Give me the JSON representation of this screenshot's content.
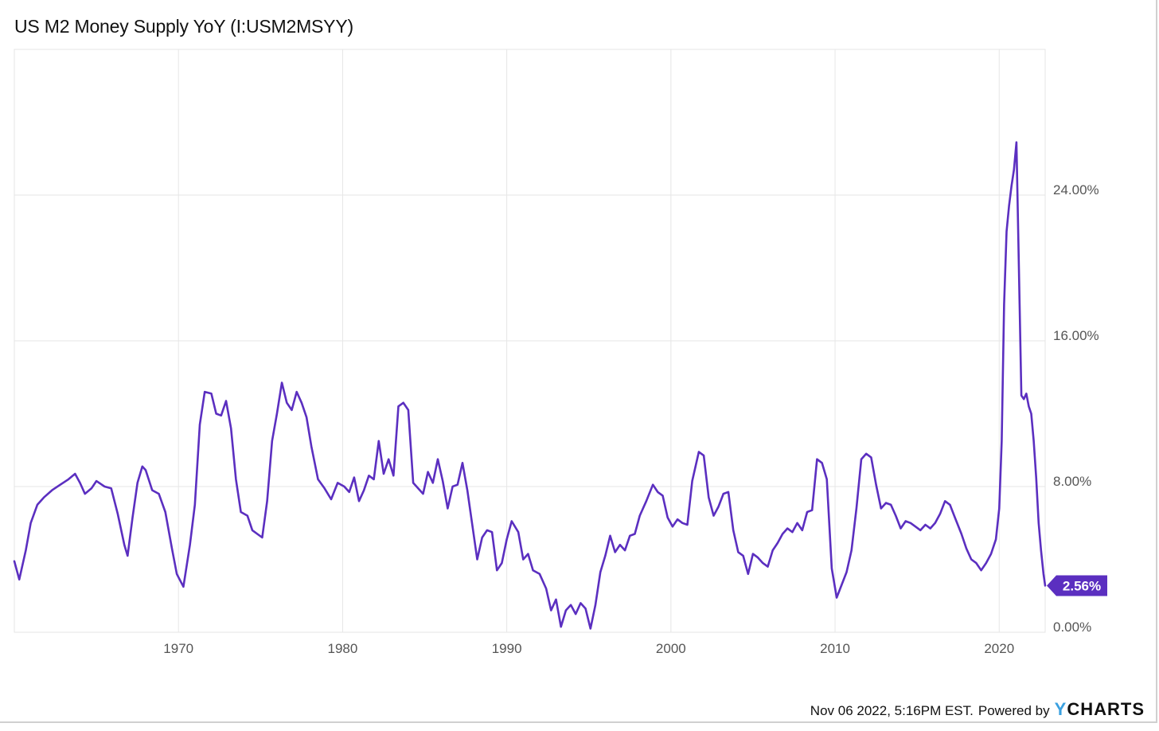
{
  "title": "US M2 Money Supply YoY (I:USM2MSYY)",
  "footer": {
    "timestamp": "Nov 06 2022, 5:16PM EST.",
    "powered_by": "Powered by",
    "brand_first": "Y",
    "brand_rest": "CHARTS"
  },
  "colors": {
    "line": "#5b2fc0",
    "badge": "#5b2fc0",
    "grid": "#e6e6e6"
  },
  "chart_data": {
    "type": "line",
    "title": "US M2 Money Supply YoY (I:USM2MSYY)",
    "xlabel": "",
    "ylabel": "",
    "xlim": [
      1960.0,
      2022.8
    ],
    "ylim": [
      0,
      32
    ],
    "x_ticks": [
      1970,
      1980,
      1990,
      2000,
      2010,
      2020
    ],
    "y_ticks": [
      0,
      8,
      16,
      24
    ],
    "y_tick_labels": [
      "0.00%",
      "8.00%",
      "16.00%",
      "24.00%"
    ],
    "last_value_label": "2.56%",
    "series": [
      {
        "name": "US M2 Money Supply YoY",
        "points": [
          [
            1960.0,
            3.9
          ],
          [
            1960.3,
            2.9
          ],
          [
            1960.7,
            4.5
          ],
          [
            1961.0,
            6.0
          ],
          [
            1961.4,
            7.0
          ],
          [
            1961.8,
            7.4
          ],
          [
            1962.3,
            7.8
          ],
          [
            1962.8,
            8.1
          ],
          [
            1963.3,
            8.4
          ],
          [
            1963.7,
            8.7
          ],
          [
            1964.0,
            8.2
          ],
          [
            1964.3,
            7.6
          ],
          [
            1964.7,
            7.9
          ],
          [
            1965.0,
            8.3
          ],
          [
            1965.5,
            8.0
          ],
          [
            1965.9,
            7.9
          ],
          [
            1966.3,
            6.5
          ],
          [
            1966.7,
            4.8
          ],
          [
            1966.9,
            4.2
          ],
          [
            1967.2,
            6.3
          ],
          [
            1967.5,
            8.2
          ],
          [
            1967.8,
            9.1
          ],
          [
            1968.0,
            8.9
          ],
          [
            1968.4,
            7.8
          ],
          [
            1968.8,
            7.6
          ],
          [
            1969.2,
            6.6
          ],
          [
            1969.6,
            4.6
          ],
          [
            1969.9,
            3.2
          ],
          [
            1970.3,
            2.5
          ],
          [
            1970.7,
            4.8
          ],
          [
            1971.0,
            7.0
          ],
          [
            1971.3,
            11.4
          ],
          [
            1971.6,
            13.2
          ],
          [
            1972.0,
            13.1
          ],
          [
            1972.3,
            12.0
          ],
          [
            1972.6,
            11.9
          ],
          [
            1972.9,
            12.7
          ],
          [
            1973.2,
            11.2
          ],
          [
            1973.5,
            8.4
          ],
          [
            1973.8,
            6.6
          ],
          [
            1974.2,
            6.4
          ],
          [
            1974.5,
            5.6
          ],
          [
            1974.8,
            5.4
          ],
          [
            1975.1,
            5.2
          ],
          [
            1975.4,
            7.2
          ],
          [
            1975.7,
            10.5
          ],
          [
            1976.0,
            12.0
          ],
          [
            1976.3,
            13.7
          ],
          [
            1976.6,
            12.6
          ],
          [
            1976.9,
            12.2
          ],
          [
            1977.2,
            13.2
          ],
          [
            1977.5,
            12.6
          ],
          [
            1977.8,
            11.8
          ],
          [
            1978.1,
            10.2
          ],
          [
            1978.5,
            8.4
          ],
          [
            1978.9,
            7.9
          ],
          [
            1979.3,
            7.3
          ],
          [
            1979.7,
            8.2
          ],
          [
            1980.1,
            8.0
          ],
          [
            1980.4,
            7.7
          ],
          [
            1980.7,
            8.5
          ],
          [
            1981.0,
            7.2
          ],
          [
            1981.3,
            7.8
          ],
          [
            1981.6,
            8.6
          ],
          [
            1981.9,
            8.4
          ],
          [
            1982.2,
            10.5
          ],
          [
            1982.5,
            8.7
          ],
          [
            1982.8,
            9.5
          ],
          [
            1983.1,
            8.6
          ],
          [
            1983.4,
            12.4
          ],
          [
            1983.7,
            12.6
          ],
          [
            1984.0,
            12.2
          ],
          [
            1984.3,
            8.2
          ],
          [
            1984.6,
            7.9
          ],
          [
            1984.9,
            7.6
          ],
          [
            1985.2,
            8.8
          ],
          [
            1985.5,
            8.2
          ],
          [
            1985.8,
            9.5
          ],
          [
            1986.1,
            8.3
          ],
          [
            1986.4,
            6.8
          ],
          [
            1986.7,
            8.0
          ],
          [
            1987.0,
            8.1
          ],
          [
            1987.3,
            9.3
          ],
          [
            1987.6,
            7.8
          ],
          [
            1987.9,
            5.9
          ],
          [
            1988.2,
            4.0
          ],
          [
            1988.5,
            5.2
          ],
          [
            1988.8,
            5.6
          ],
          [
            1989.1,
            5.5
          ],
          [
            1989.4,
            3.4
          ],
          [
            1989.7,
            3.8
          ],
          [
            1990.0,
            5.1
          ],
          [
            1990.3,
            6.1
          ],
          [
            1990.7,
            5.5
          ],
          [
            1991.0,
            4.0
          ],
          [
            1991.3,
            4.3
          ],
          [
            1991.6,
            3.4
          ],
          [
            1992.0,
            3.2
          ],
          [
            1992.4,
            2.4
          ],
          [
            1992.7,
            1.2
          ],
          [
            1993.0,
            1.8
          ],
          [
            1993.3,
            0.3
          ],
          [
            1993.6,
            1.2
          ],
          [
            1993.9,
            1.5
          ],
          [
            1994.2,
            1.0
          ],
          [
            1994.5,
            1.6
          ],
          [
            1994.8,
            1.3
          ],
          [
            1995.1,
            0.2
          ],
          [
            1995.4,
            1.5
          ],
          [
            1995.7,
            3.3
          ],
          [
            1996.0,
            4.2
          ],
          [
            1996.3,
            5.3
          ],
          [
            1996.6,
            4.4
          ],
          [
            1996.9,
            4.8
          ],
          [
            1997.2,
            4.5
          ],
          [
            1997.5,
            5.3
          ],
          [
            1997.8,
            5.4
          ],
          [
            1998.1,
            6.4
          ],
          [
            1998.5,
            7.2
          ],
          [
            1998.9,
            8.1
          ],
          [
            1999.2,
            7.7
          ],
          [
            1999.5,
            7.5
          ],
          [
            1999.8,
            6.3
          ],
          [
            2000.1,
            5.8
          ],
          [
            2000.4,
            6.2
          ],
          [
            2000.7,
            6.0
          ],
          [
            2001.0,
            5.9
          ],
          [
            2001.3,
            8.3
          ],
          [
            2001.7,
            9.9
          ],
          [
            2002.0,
            9.7
          ],
          [
            2002.3,
            7.4
          ],
          [
            2002.6,
            6.4
          ],
          [
            2002.9,
            6.9
          ],
          [
            2003.2,
            7.6
          ],
          [
            2003.5,
            7.7
          ],
          [
            2003.8,
            5.6
          ],
          [
            2004.1,
            4.4
          ],
          [
            2004.4,
            4.2
          ],
          [
            2004.7,
            3.2
          ],
          [
            2005.0,
            4.3
          ],
          [
            2005.3,
            4.1
          ],
          [
            2005.6,
            3.8
          ],
          [
            2005.9,
            3.6
          ],
          [
            2006.2,
            4.5
          ],
          [
            2006.5,
            4.9
          ],
          [
            2006.8,
            5.4
          ],
          [
            2007.1,
            5.7
          ],
          [
            2007.4,
            5.5
          ],
          [
            2007.7,
            6.0
          ],
          [
            2008.0,
            5.6
          ],
          [
            2008.3,
            6.6
          ],
          [
            2008.6,
            6.7
          ],
          [
            2008.9,
            9.5
          ],
          [
            2009.2,
            9.3
          ],
          [
            2009.5,
            8.4
          ],
          [
            2009.8,
            3.5
          ],
          [
            2010.1,
            1.9
          ],
          [
            2010.4,
            2.6
          ],
          [
            2010.7,
            3.3
          ],
          [
            2011.0,
            4.5
          ],
          [
            2011.3,
            6.8
          ],
          [
            2011.6,
            9.5
          ],
          [
            2011.9,
            9.8
          ],
          [
            2012.2,
            9.6
          ],
          [
            2012.5,
            8.1
          ],
          [
            2012.8,
            6.8
          ],
          [
            2013.1,
            7.1
          ],
          [
            2013.4,
            7.0
          ],
          [
            2013.7,
            6.4
          ],
          [
            2014.0,
            5.7
          ],
          [
            2014.3,
            6.1
          ],
          [
            2014.6,
            6.0
          ],
          [
            2014.9,
            5.8
          ],
          [
            2015.2,
            5.6
          ],
          [
            2015.5,
            5.9
          ],
          [
            2015.8,
            5.7
          ],
          [
            2016.1,
            6.0
          ],
          [
            2016.4,
            6.5
          ],
          [
            2016.7,
            7.2
          ],
          [
            2017.0,
            7.0
          ],
          [
            2017.3,
            6.3
          ],
          [
            2017.7,
            5.4
          ],
          [
            2018.0,
            4.6
          ],
          [
            2018.3,
            4.0
          ],
          [
            2018.6,
            3.8
          ],
          [
            2018.9,
            3.4
          ],
          [
            2019.2,
            3.8
          ],
          [
            2019.5,
            4.3
          ],
          [
            2019.8,
            5.1
          ],
          [
            2020.0,
            6.8
          ],
          [
            2020.15,
            10.5
          ],
          [
            2020.3,
            18.0
          ],
          [
            2020.45,
            22.0
          ],
          [
            2020.6,
            23.4
          ],
          [
            2020.75,
            24.5
          ],
          [
            2020.9,
            25.4
          ],
          [
            2021.05,
            26.9
          ],
          [
            2021.2,
            20.0
          ],
          [
            2021.35,
            13.0
          ],
          [
            2021.5,
            12.8
          ],
          [
            2021.65,
            13.1
          ],
          [
            2021.8,
            12.4
          ],
          [
            2021.95,
            12.0
          ],
          [
            2022.1,
            10.5
          ],
          [
            2022.25,
            8.5
          ],
          [
            2022.4,
            6.0
          ],
          [
            2022.55,
            4.5
          ],
          [
            2022.7,
            3.2
          ],
          [
            2022.8,
            2.56
          ]
        ]
      }
    ]
  }
}
